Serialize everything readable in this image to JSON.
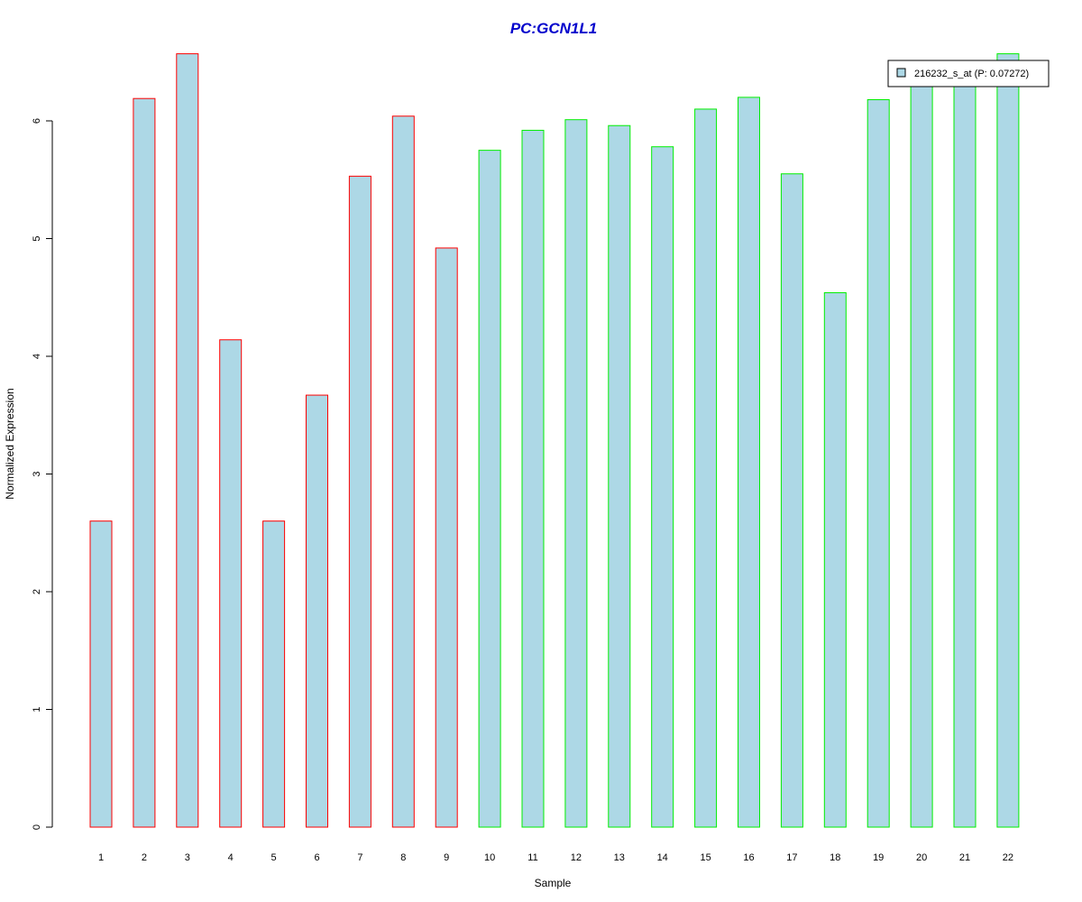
{
  "chart_data": {
    "type": "bar",
    "title": "PC:GCN1L1",
    "xlabel": "Sample",
    "ylabel": "Normalized Expression",
    "categories": [
      "1",
      "2",
      "3",
      "4",
      "5",
      "6",
      "7",
      "8",
      "9",
      "10",
      "11",
      "12",
      "13",
      "14",
      "15",
      "16",
      "17",
      "18",
      "19",
      "20",
      "21",
      "22"
    ],
    "series": [
      {
        "name": "216232_s_at (P: 0.07272)",
        "values": [
          2.6,
          6.19,
          6.57,
          4.14,
          2.6,
          3.67,
          5.53,
          6.04,
          4.92,
          5.75,
          5.92,
          6.01,
          5.96,
          5.78,
          6.1,
          6.2,
          5.55,
          4.54,
          6.18,
          6.35,
          6.42,
          6.57
        ]
      }
    ],
    "groups": [
      {
        "samples": [
          "1",
          "2",
          "3",
          "4",
          "5",
          "6",
          "7",
          "8",
          "9"
        ],
        "border_color": "#ff0000"
      },
      {
        "samples": [
          "10",
          "11",
          "12",
          "13",
          "14",
          "15",
          "16",
          "17",
          "18",
          "19",
          "20",
          "21",
          "22"
        ],
        "border_color": "#00ee00"
      }
    ],
    "yticks": [
      "0",
      "1",
      "2",
      "3",
      "4",
      "5",
      "6"
    ],
    "ylim": [
      0,
      6.57
    ],
    "grid": false,
    "legend_position": "top-right",
    "colors": {
      "bar_fill": "#add8e6",
      "title": "#0000cc"
    }
  }
}
